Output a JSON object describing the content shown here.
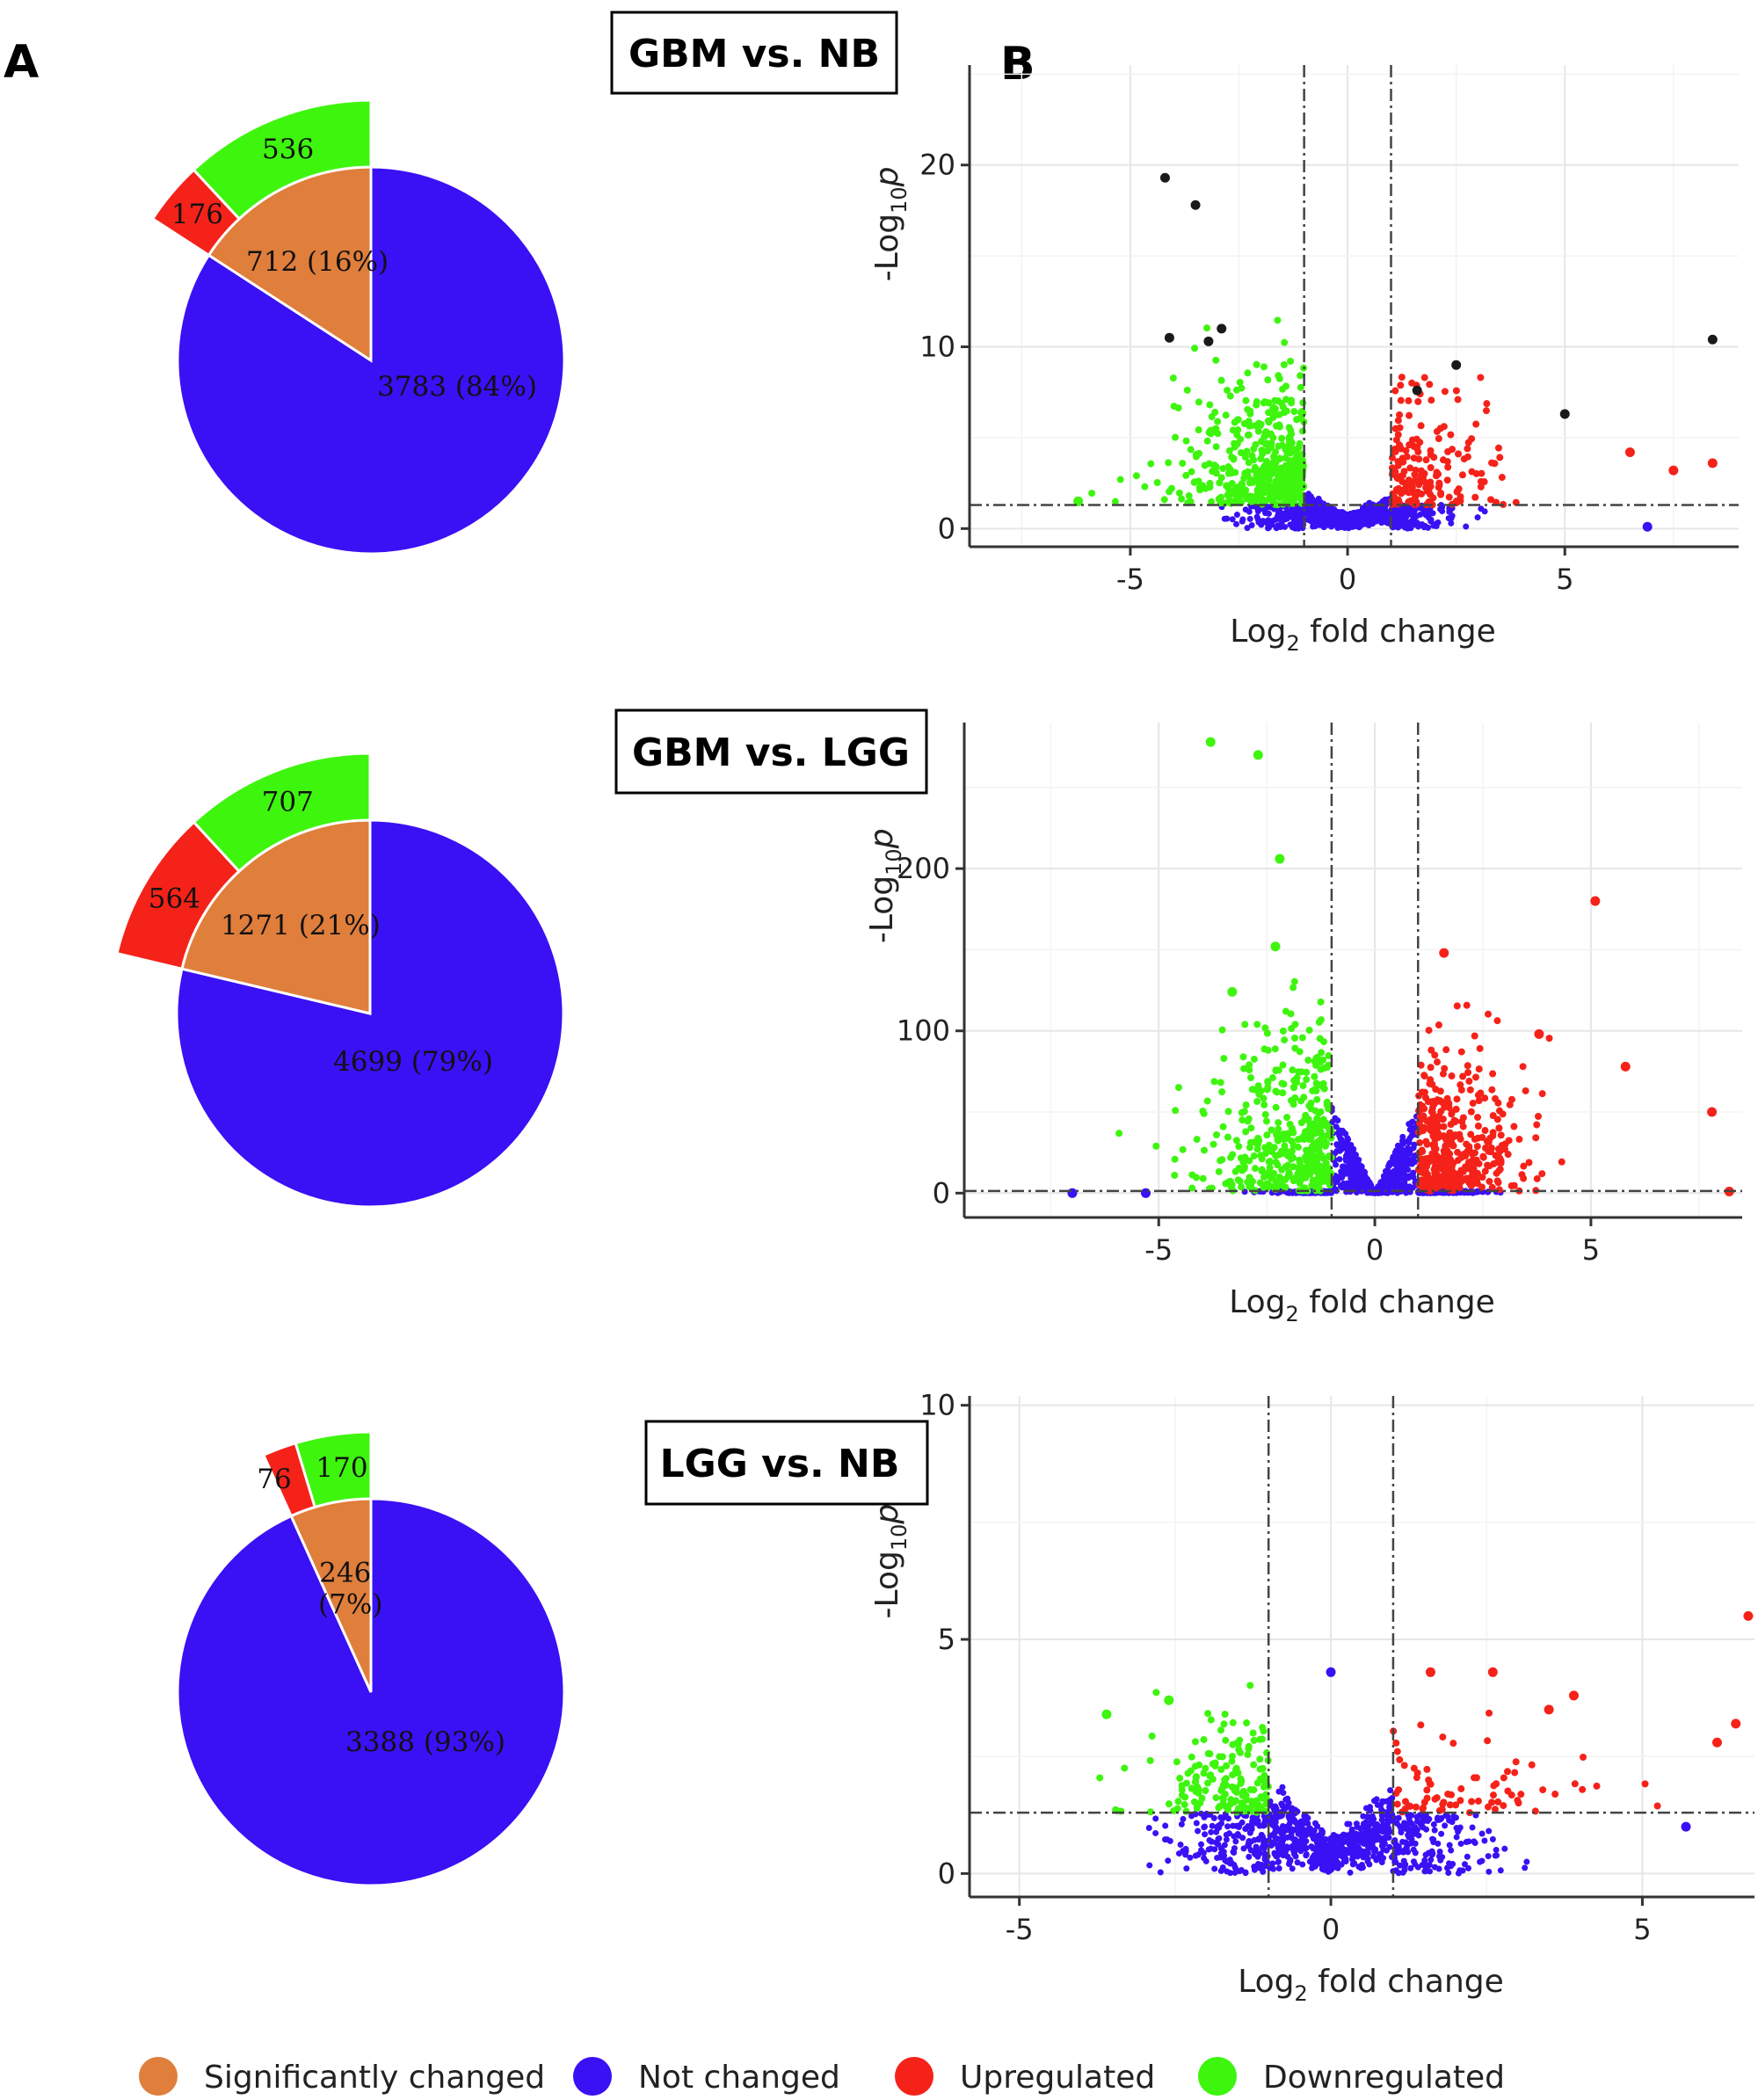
{
  "panel_labels": {
    "a": "A",
    "b": "B"
  },
  "colors": {
    "significant": "#E07E3C",
    "not_changed": "#3A10F4",
    "upregulated": "#F5221A",
    "downregulated": "#3EF50E",
    "highlight": "#1a1a1a"
  },
  "legend": [
    {
      "key": "significant",
      "label": "Significantly changed"
    },
    {
      "key": "not_changed",
      "label": "Not changed"
    },
    {
      "key": "upregulated",
      "label": "Upregulated"
    },
    {
      "key": "downregulated",
      "label": "Downregulated"
    }
  ],
  "chart_data": [
    {
      "type": "pie",
      "comparison": "GBM vs. NB",
      "slices": [
        {
          "name": "Significantly changed",
          "value": 712,
          "label": "712 (16%)"
        },
        {
          "name": "Not changed",
          "value": 3783,
          "label": "3783 (84%)"
        }
      ],
      "breakdown": [
        {
          "name": "Upregulated",
          "value": 176,
          "label": "176"
        },
        {
          "name": "Downregulated",
          "value": 536,
          "label": "536"
        }
      ]
    },
    {
      "type": "pie",
      "comparison": "GBM vs. LGG",
      "slices": [
        {
          "name": "Significantly changed",
          "value": 1271,
          "label": "1271 (21%)"
        },
        {
          "name": "Not changed",
          "value": 4699,
          "label": "4699 (79%)"
        }
      ],
      "breakdown": [
        {
          "name": "Upregulated",
          "value": 564,
          "label": "564"
        },
        {
          "name": "Downregulated",
          "value": 707,
          "label": "707"
        }
      ]
    },
    {
      "type": "pie",
      "comparison": "LGG vs. NB",
      "slices": [
        {
          "name": "Significantly changed",
          "value": 246,
          "label": "246",
          "label2": "(7%)"
        },
        {
          "name": "Not changed",
          "value": 3388,
          "label": "3388 (93%)"
        }
      ],
      "breakdown": [
        {
          "name": "Upregulated",
          "value": 76,
          "label": "76"
        },
        {
          "name": "Downregulated",
          "value": 170,
          "label": "170"
        }
      ]
    },
    {
      "type": "scatter",
      "title": "GBM vs. NB",
      "xlabel": "Log2 fold change",
      "xlabel_main": "Log",
      "xlabel_sub": "2",
      "xlabel_rest": " fold change",
      "ylabel_main": "-Log",
      "ylabel_sub": "10",
      "ylabel_italic": "p",
      "xlim": [
        -8.7,
        9
      ],
      "ylim": [
        -1,
        25.5
      ],
      "xticks": [
        -5,
        0,
        5
      ],
      "yticks": [
        0,
        10,
        20
      ],
      "fc_cutoff": 1,
      "p_cutoff": 1.3,
      "down_count": 536,
      "up_count": 176,
      "notable_points": [
        {
          "x": -4.2,
          "y": 19.3,
          "color": "highlight"
        },
        {
          "x": -3.5,
          "y": 17.8,
          "color": "highlight"
        },
        {
          "x": -4.1,
          "y": 10.5,
          "color": "highlight"
        },
        {
          "x": -2.9,
          "y": 11.0,
          "color": "highlight"
        },
        {
          "x": -3.2,
          "y": 10.3,
          "color": "highlight"
        },
        {
          "x": 2.5,
          "y": 9.0,
          "color": "highlight"
        },
        {
          "x": 1.6,
          "y": 7.6,
          "color": "highlight"
        },
        {
          "x": 5.0,
          "y": 6.3,
          "color": "highlight"
        },
        {
          "x": 8.4,
          "y": 10.4,
          "color": "highlight"
        },
        {
          "x": 6.5,
          "y": 4.2,
          "color": "upregulated"
        },
        {
          "x": 7.5,
          "y": 3.2,
          "color": "upregulated"
        },
        {
          "x": 8.4,
          "y": 3.6,
          "color": "upregulated"
        },
        {
          "x": 6.9,
          "y": 0.1,
          "color": "not_changed"
        },
        {
          "x": -6.2,
          "y": 1.5,
          "color": "downregulated"
        }
      ]
    },
    {
      "type": "scatter",
      "title": "GBM vs. LGG",
      "xlabel": "Log2 fold change",
      "xlabel_main": "Log",
      "xlabel_sub": "2",
      "xlabel_rest": " fold change",
      "ylabel_main": "-Log",
      "ylabel_sub": "10",
      "ylabel_italic": "p",
      "xlim": [
        -9.5,
        8.5
      ],
      "ylim": [
        -15,
        290
      ],
      "xticks": [
        -5,
        0,
        5
      ],
      "yticks": [
        0,
        100,
        200
      ],
      "fc_cutoff": 1,
      "p_cutoff": 1.3,
      "down_count": 707,
      "up_count": 564,
      "notable_points": [
        {
          "x": -3.8,
          "y": 278,
          "color": "downregulated"
        },
        {
          "x": -2.7,
          "y": 270,
          "color": "downregulated"
        },
        {
          "x": -2.2,
          "y": 206,
          "color": "downregulated"
        },
        {
          "x": -2.3,
          "y": 152,
          "color": "downregulated"
        },
        {
          "x": -3.3,
          "y": 124,
          "color": "downregulated"
        },
        {
          "x": 5.1,
          "y": 180,
          "color": "upregulated"
        },
        {
          "x": 1.6,
          "y": 148,
          "color": "upregulated"
        },
        {
          "x": 3.8,
          "y": 98,
          "color": "upregulated"
        },
        {
          "x": 5.8,
          "y": 78,
          "color": "upregulated"
        },
        {
          "x": 7.8,
          "y": 50,
          "color": "upregulated"
        },
        {
          "x": 8.2,
          "y": 1,
          "color": "upregulated"
        },
        {
          "x": -7.0,
          "y": 0,
          "color": "not_changed"
        },
        {
          "x": -5.3,
          "y": 0,
          "color": "not_changed"
        }
      ]
    },
    {
      "type": "scatter",
      "title": "LGG vs. NB",
      "xlabel": "Log2 fold change",
      "xlabel_main": "Log",
      "xlabel_sub": "2",
      "xlabel_rest": " fold change",
      "ylabel_main": "-Log",
      "ylabel_sub": "10",
      "ylabel_italic": "p",
      "xlim": [
        -5.8,
        6.8
      ],
      "ylim": [
        -0.5,
        10.2
      ],
      "xticks": [
        -5,
        0,
        5
      ],
      "yticks": [
        0,
        5,
        10
      ],
      "fc_cutoff": 1,
      "p_cutoff": 1.3,
      "down_count": 170,
      "up_count": 76,
      "notable_points": [
        {
          "x": 6.7,
          "y": 5.5,
          "color": "upregulated"
        },
        {
          "x": 6.5,
          "y": 3.2,
          "color": "upregulated"
        },
        {
          "x": 6.2,
          "y": 2.8,
          "color": "upregulated"
        },
        {
          "x": 2.6,
          "y": 4.3,
          "color": "upregulated"
        },
        {
          "x": 1.6,
          "y": 4.3,
          "color": "upregulated"
        },
        {
          "x": 3.5,
          "y": 3.5,
          "color": "upregulated"
        },
        {
          "x": 3.9,
          "y": 3.8,
          "color": "upregulated"
        },
        {
          "x": 5.7,
          "y": 1.0,
          "color": "not_changed"
        },
        {
          "x": 0.0,
          "y": 4.3,
          "color": "not_changed"
        },
        {
          "x": -3.6,
          "y": 3.4,
          "color": "downregulated"
        },
        {
          "x": -2.6,
          "y": 3.7,
          "color": "downregulated"
        }
      ]
    }
  ]
}
